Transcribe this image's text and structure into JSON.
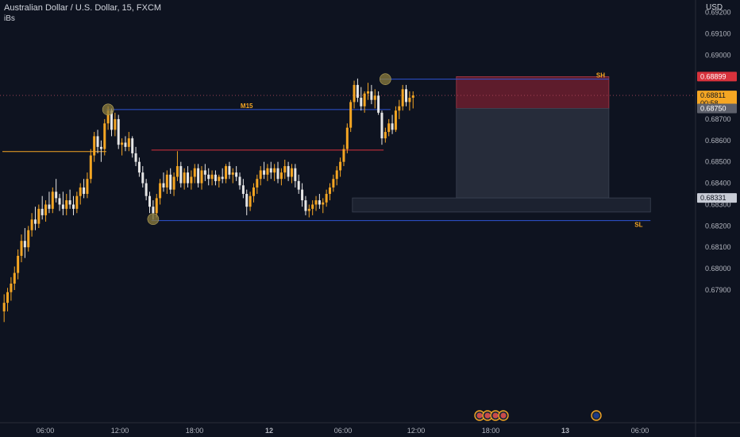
{
  "header": {
    "title": "Australian Dollar / U.S. Dollar, 15, FXCM",
    "indicator": "iBs",
    "currency": "USD"
  },
  "colors": {
    "background": "#0e1320",
    "candle_up": "#f5a623",
    "candle_down": "#e6e6e6",
    "blue_line": "#2f55d4",
    "red_line": "#d8323c",
    "orange_line": "#f5a623",
    "stop_zone": "#7a2030",
    "target_zone": "#2a3140",
    "demand_zone": "#1e2532",
    "swing_marker": "#8c7d3e",
    "label_orange": "#f5a623"
  },
  "chart_data": {
    "type": "candlestick",
    "symbol": "AUDUSD",
    "timeframe": "15",
    "ylim": [
      0.6785,
      0.6932
    ],
    "y_ticks": [
      "0.69200",
      "0.69100",
      "0.69000",
      "0.68700",
      "0.68600",
      "0.68500",
      "0.68400",
      "0.68300",
      "0.68200",
      "0.68100",
      "0.68000",
      "0.67900"
    ],
    "x_ticks": [
      "06:00",
      "12:00",
      "18:00",
      "12",
      "06:00",
      "12:00",
      "18:00",
      "13",
      "06:00"
    ],
    "price_labels": [
      {
        "value": 0.68899,
        "text": "0.68899",
        "color": "#d8323c"
      },
      {
        "value": 0.68811,
        "text": "0.68811",
        "sub": "00:58",
        "color": "#f5a623"
      },
      {
        "value": 0.6875,
        "text": "0.68750",
        "color": "#5d606b"
      },
      {
        "value": 0.68331,
        "text": "0.68331",
        "color": "#c8ccd6"
      }
    ],
    "levels": [
      {
        "name": "M15",
        "price": 0.68745,
        "from_bar": 30,
        "to_bar": 112
      },
      {
        "name": "SH",
        "price": 0.68887,
        "from_bar": 109,
        "to_bar": 175
      },
      {
        "name": "SL",
        "price": 0.68225,
        "from_bar": 43,
        "to_bar": 187
      },
      {
        "name": "",
        "price": 0.68548,
        "from_bar": 0,
        "to_bar": 30
      },
      {
        "name": "",
        "price": 0.68555,
        "from_bar": 43,
        "to_bar": 110
      }
    ],
    "zones": [
      {
        "type": "stop",
        "top": 0.68899,
        "bottom": 0.6875,
        "from_bar": 131,
        "to_bar": 175
      },
      {
        "type": "target",
        "top": 0.6875,
        "bottom": 0.68331,
        "from_bar": 131,
        "to_bar": 175
      },
      {
        "type": "demand",
        "top": 0.68331,
        "bottom": 0.68265,
        "from_bar": 101,
        "to_bar": 187
      }
    ],
    "markers": [
      {
        "bar": 30,
        "price": 0.68745
      },
      {
        "bar": 43,
        "price": 0.68232
      },
      {
        "bar": 110,
        "price": 0.68887
      }
    ],
    "candles": [
      [
        0.678,
        0.6788,
        0.6775,
        0.6784
      ],
      [
        0.6784,
        0.6791,
        0.678,
        0.6789
      ],
      [
        0.6789,
        0.6796,
        0.6785,
        0.6793
      ],
      [
        0.6793,
        0.6801,
        0.679,
        0.6798
      ],
      [
        0.6798,
        0.6809,
        0.6795,
        0.6806
      ],
      [
        0.6806,
        0.6816,
        0.6803,
        0.6813
      ],
      [
        0.6813,
        0.6819,
        0.6805,
        0.681
      ],
      [
        0.681,
        0.682,
        0.6808,
        0.6818
      ],
      [
        0.6818,
        0.6826,
        0.6815,
        0.6823
      ],
      [
        0.6823,
        0.6829,
        0.6818,
        0.6821
      ],
      [
        0.6821,
        0.683,
        0.6819,
        0.6828
      ],
      [
        0.6828,
        0.6834,
        0.6823,
        0.6825
      ],
      [
        0.6825,
        0.6832,
        0.6822,
        0.683
      ],
      [
        0.683,
        0.6836,
        0.6826,
        0.6828
      ],
      [
        0.6828,
        0.6838,
        0.6826,
        0.6836
      ],
      [
        0.6836,
        0.6842,
        0.6831,
        0.6833
      ],
      [
        0.6833,
        0.6835,
        0.6827,
        0.683
      ],
      [
        0.683,
        0.6836,
        0.6825,
        0.6828
      ],
      [
        0.6828,
        0.6835,
        0.6825,
        0.6832
      ],
      [
        0.6832,
        0.6837,
        0.6828,
        0.683
      ],
      [
        0.683,
        0.6834,
        0.6825,
        0.6828
      ],
      [
        0.6828,
        0.6836,
        0.6826,
        0.6834
      ],
      [
        0.6834,
        0.684,
        0.683,
        0.6838
      ],
      [
        0.6838,
        0.6842,
        0.6833,
        0.6835
      ],
      [
        0.6835,
        0.6845,
        0.6833,
        0.6842
      ],
      [
        0.6842,
        0.6856,
        0.684,
        0.6853
      ],
      [
        0.6853,
        0.6864,
        0.685,
        0.6862
      ],
      [
        0.6862,
        0.6865,
        0.6854,
        0.6857
      ],
      [
        0.6857,
        0.686,
        0.685,
        0.6856
      ],
      [
        0.6856,
        0.687,
        0.6853,
        0.6868
      ],
      [
        0.6868,
        0.6876,
        0.6865,
        0.6874
      ],
      [
        0.6874,
        0.6875,
        0.6862,
        0.6865
      ],
      [
        0.6865,
        0.6873,
        0.6862,
        0.687
      ],
      [
        0.687,
        0.6872,
        0.6856,
        0.6858
      ],
      [
        0.6858,
        0.6861,
        0.6853,
        0.6859
      ],
      [
        0.6859,
        0.6862,
        0.6855,
        0.6857
      ],
      [
        0.6857,
        0.6864,
        0.6855,
        0.6861
      ],
      [
        0.6861,
        0.6862,
        0.6852,
        0.6854
      ],
      [
        0.6854,
        0.6857,
        0.6848,
        0.685
      ],
      [
        0.685,
        0.6852,
        0.6843,
        0.6845
      ],
      [
        0.6845,
        0.6848,
        0.6838,
        0.684
      ],
      [
        0.684,
        0.6842,
        0.6832,
        0.6834
      ],
      [
        0.6834,
        0.6836,
        0.6826,
        0.6829
      ],
      [
        0.6829,
        0.6832,
        0.6823,
        0.6826
      ],
      [
        0.6826,
        0.6835,
        0.6824,
        0.6833
      ],
      [
        0.6833,
        0.6842,
        0.683,
        0.684
      ],
      [
        0.684,
        0.6845,
        0.6836,
        0.6838
      ],
      [
        0.6838,
        0.6846,
        0.6835,
        0.6844
      ],
      [
        0.6844,
        0.6847,
        0.6835,
        0.6837
      ],
      [
        0.6837,
        0.6845,
        0.6834,
        0.6843
      ],
      [
        0.6843,
        0.6855,
        0.6841,
        0.6848
      ],
      [
        0.6848,
        0.685,
        0.6838,
        0.684
      ],
      [
        0.684,
        0.6847,
        0.6837,
        0.6845
      ],
      [
        0.6845,
        0.6848,
        0.6838,
        0.684
      ],
      [
        0.684,
        0.6846,
        0.6837,
        0.6843
      ],
      [
        0.6843,
        0.6849,
        0.684,
        0.6847
      ],
      [
        0.6847,
        0.6849,
        0.6838,
        0.684
      ],
      [
        0.684,
        0.6848,
        0.6837,
        0.6846
      ],
      [
        0.6846,
        0.6849,
        0.6841,
        0.6844
      ],
      [
        0.6844,
        0.6847,
        0.6839,
        0.6842
      ],
      [
        0.6842,
        0.6846,
        0.6839,
        0.6844
      ],
      [
        0.6844,
        0.6846,
        0.6839,
        0.6841
      ],
      [
        0.6841,
        0.6844,
        0.6838,
        0.6843
      ],
      [
        0.6843,
        0.6847,
        0.684,
        0.6842
      ],
      [
        0.6842,
        0.6849,
        0.684,
        0.6848
      ],
      [
        0.6848,
        0.685,
        0.6842,
        0.6844
      ],
      [
        0.6844,
        0.6847,
        0.684,
        0.6845
      ],
      [
        0.6845,
        0.6848,
        0.6841,
        0.6843
      ],
      [
        0.6843,
        0.6845,
        0.6837,
        0.6839
      ],
      [
        0.6839,
        0.6842,
        0.6833,
        0.6835
      ],
      [
        0.6835,
        0.6837,
        0.6825,
        0.6829
      ],
      [
        0.6829,
        0.6836,
        0.6827,
        0.6834
      ],
      [
        0.6834,
        0.684,
        0.6831,
        0.6838
      ],
      [
        0.6838,
        0.6844,
        0.6835,
        0.6842
      ],
      [
        0.6842,
        0.6848,
        0.6839,
        0.6846
      ],
      [
        0.6846,
        0.685,
        0.6842,
        0.6844
      ],
      [
        0.6844,
        0.6849,
        0.6841,
        0.6847
      ],
      [
        0.6847,
        0.685,
        0.6842,
        0.6845
      ],
      [
        0.6845,
        0.6849,
        0.6841,
        0.6847
      ],
      [
        0.6847,
        0.685,
        0.684,
        0.6842
      ],
      [
        0.6842,
        0.6847,
        0.6839,
        0.6845
      ],
      [
        0.6845,
        0.6851,
        0.6842,
        0.6848
      ],
      [
        0.6848,
        0.685,
        0.6841,
        0.6843
      ],
      [
        0.6843,
        0.6849,
        0.684,
        0.6847
      ],
      [
        0.6847,
        0.6849,
        0.6838,
        0.6841
      ],
      [
        0.6841,
        0.6844,
        0.6835,
        0.6837
      ],
      [
        0.6837,
        0.684,
        0.6829,
        0.6832
      ],
      [
        0.6832,
        0.6834,
        0.6825,
        0.6827
      ],
      [
        0.6827,
        0.683,
        0.6824,
        0.6828
      ],
      [
        0.6828,
        0.6832,
        0.6825,
        0.683
      ],
      [
        0.683,
        0.6834,
        0.6827,
        0.6832
      ],
      [
        0.6832,
        0.6835,
        0.6828,
        0.683
      ],
      [
        0.683,
        0.6833,
        0.6826,
        0.6831
      ],
      [
        0.6831,
        0.6837,
        0.6829,
        0.6835
      ],
      [
        0.6835,
        0.684,
        0.6832,
        0.6838
      ],
      [
        0.6838,
        0.6844,
        0.6836,
        0.6842
      ],
      [
        0.6842,
        0.6848,
        0.6839,
        0.6846
      ],
      [
        0.6846,
        0.6852,
        0.6843,
        0.685
      ],
      [
        0.685,
        0.6858,
        0.6848,
        0.6856
      ],
      [
        0.6856,
        0.6868,
        0.6854,
        0.6866
      ],
      [
        0.6866,
        0.6879,
        0.6864,
        0.6878
      ],
      [
        0.6878,
        0.6888,
        0.6875,
        0.6886
      ],
      [
        0.6886,
        0.6889,
        0.6878,
        0.688
      ],
      [
        0.688,
        0.6885,
        0.6874,
        0.6876
      ],
      [
        0.6876,
        0.6883,
        0.6873,
        0.6882
      ],
      [
        0.6882,
        0.6887,
        0.6879,
        0.6883
      ],
      [
        0.6883,
        0.6886,
        0.6877,
        0.6879
      ],
      [
        0.6879,
        0.6884,
        0.6875,
        0.6881
      ],
      [
        0.6881,
        0.6883,
        0.6872,
        0.6873
      ],
      [
        0.6873,
        0.6874,
        0.6858,
        0.6861
      ],
      [
        0.6861,
        0.6866,
        0.6859,
        0.6864
      ],
      [
        0.6864,
        0.687,
        0.6862,
        0.6868
      ],
      [
        0.6868,
        0.6872,
        0.6863,
        0.6865
      ],
      [
        0.6865,
        0.6876,
        0.6864,
        0.6874
      ],
      [
        0.6874,
        0.6879,
        0.687,
        0.6876
      ],
      [
        0.6876,
        0.6886,
        0.6874,
        0.6884
      ],
      [
        0.6884,
        0.6886,
        0.6876,
        0.6878
      ],
      [
        0.6878,
        0.6883,
        0.6874,
        0.688
      ],
      [
        0.688,
        0.6883,
        0.6875,
        0.68811
      ]
    ]
  }
}
